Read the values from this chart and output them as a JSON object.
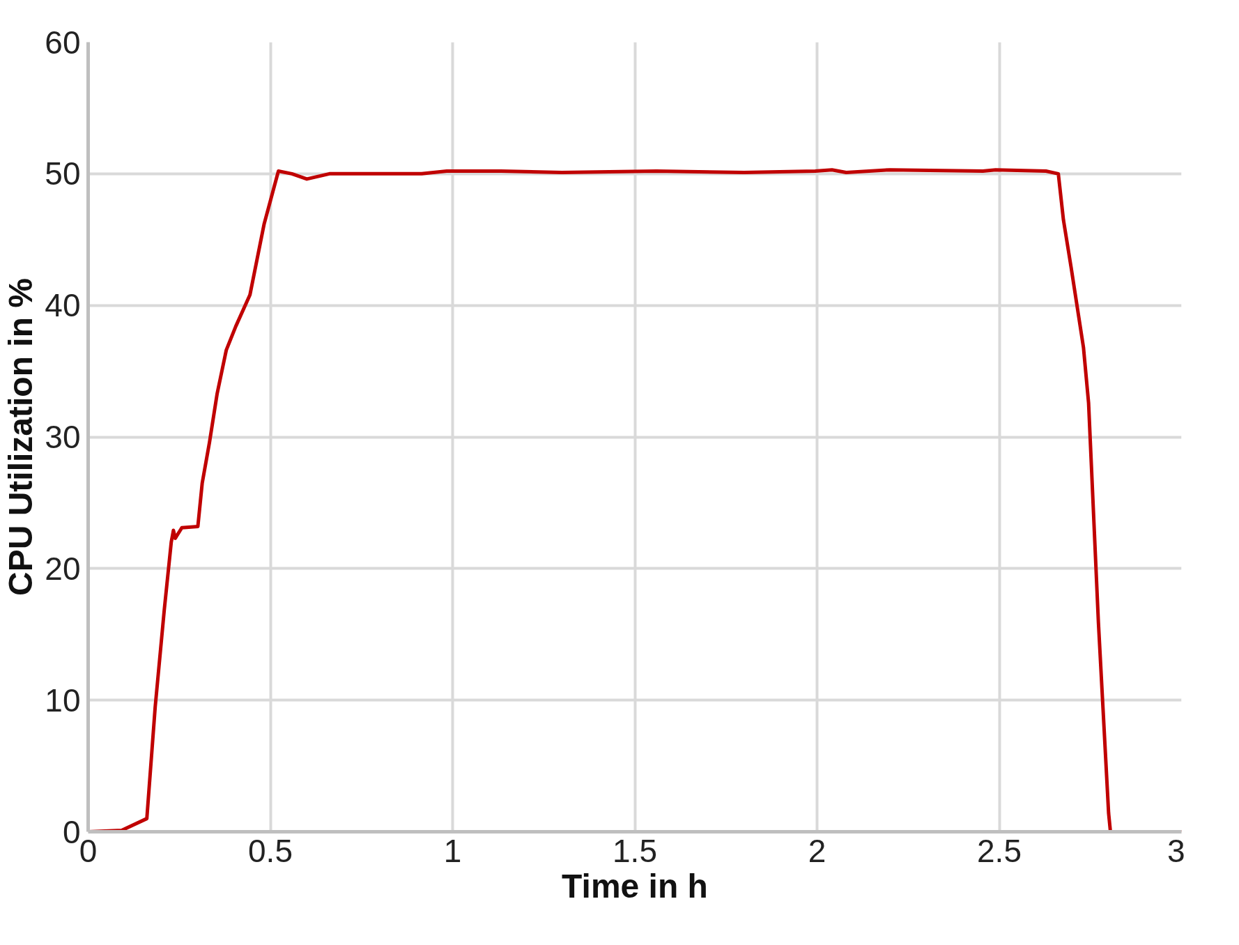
{
  "chart_data": {
    "type": "line",
    "xlabel": "Time in h",
    "ylabel": "CPU Utilization in %",
    "xlim": [
      0,
      3
    ],
    "ylim": [
      0,
      60
    ],
    "xticks": [
      0,
      0.5,
      1,
      1.5,
      2,
      2.5,
      3
    ],
    "yticks": [
      0,
      10,
      20,
      30,
      40,
      50,
      60
    ],
    "grid": true,
    "line_style": "solid",
    "marker": "none",
    "series": [
      {
        "color": "#c00000",
        "x": [
          0,
          0.092,
          0.161,
          0.184,
          0.209,
          0.228,
          0.234,
          0.239,
          0.257,
          0.301,
          0.313,
          0.333,
          0.354,
          0.379,
          0.405,
          0.444,
          0.483,
          0.522,
          0.559,
          0.6,
          0.662,
          0.915,
          0.984,
          1.133,
          1.3,
          1.559,
          1.8,
          1.995,
          2.041,
          2.08,
          2.2,
          2.455,
          2.49,
          2.628,
          2.662,
          2.676,
          2.697,
          2.731,
          2.745,
          2.772,
          2.8,
          2.805,
          2.825,
          3
        ],
        "values": [
          0,
          0.1,
          1,
          9.5,
          16.9,
          22,
          22.9,
          22.3,
          23.1,
          23.2,
          26.5,
          29.6,
          33.3,
          36.6,
          38.4,
          40.8,
          46.2,
          50.2,
          50,
          49.6,
          50,
          50,
          50.2,
          50.2,
          50.1,
          50.2,
          50.1,
          50.2,
          50.3,
          50.1,
          50.3,
          50.2,
          50.3,
          50.2,
          50,
          46.5,
          42.9,
          36.8,
          32.6,
          15.9,
          1.4,
          0,
          0,
          0
        ]
      }
    ]
  }
}
